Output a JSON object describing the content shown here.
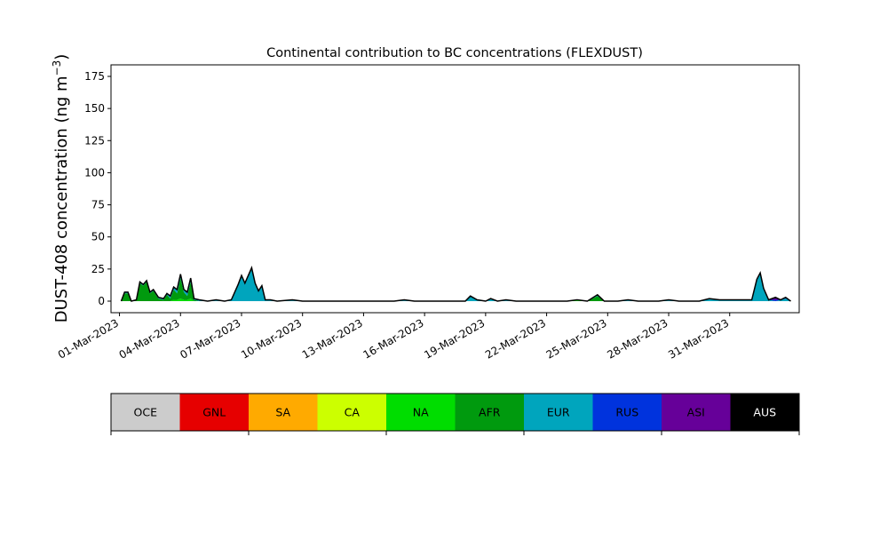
{
  "chart_data": {
    "type": "area",
    "title": "Continental contribution to BC concentrations (FLEXDUST)",
    "ylabel_main": "DUST-408 concentration (ng m",
    "ylabel_sup": "−3",
    "ylabel_close": ")",
    "xlabel": "",
    "x_start": "2023-02-28T14:00",
    "x_end": "2023-04-03T10:00",
    "ylim": [
      -9,
      184
    ],
    "yticks": [
      0,
      25,
      50,
      75,
      100,
      125,
      150,
      175
    ],
    "xticks": [
      {
        "date": "2023-03-01",
        "label": "01-Mar-2023"
      },
      {
        "date": "2023-03-04",
        "label": "04-Mar-2023"
      },
      {
        "date": "2023-03-07",
        "label": "07-Mar-2023"
      },
      {
        "date": "2023-03-10",
        "label": "10-Mar-2023"
      },
      {
        "date": "2023-03-13",
        "label": "13-Mar-2023"
      },
      {
        "date": "2023-03-16",
        "label": "16-Mar-2023"
      },
      {
        "date": "2023-03-19",
        "label": "19-Mar-2023"
      },
      {
        "date": "2023-03-22",
        "label": "22-Mar-2023"
      },
      {
        "date": "2023-03-25",
        "label": "25-Mar-2023"
      },
      {
        "date": "2023-03-28",
        "label": "28-Mar-2023"
      },
      {
        "date": "2023-03-31",
        "label": "31-Mar-2023"
      }
    ],
    "grid": false,
    "total_line_color": "#000000",
    "legend": [
      {
        "name": "OCE",
        "color": "#cccccc",
        "text_color": "#000000"
      },
      {
        "name": "GNL",
        "color": "#e60000",
        "text_color": "#000000"
      },
      {
        "name": "SA",
        "color": "#ffaa00",
        "text_color": "#000000"
      },
      {
        "name": "CA",
        "color": "#ccff00",
        "text_color": "#000000"
      },
      {
        "name": "NA",
        "color": "#00dd00",
        "text_color": "#000000"
      },
      {
        "name": "AFR",
        "color": "#009a0e",
        "text_color": "#000000"
      },
      {
        "name": "EUR",
        "color": "#00a5bd",
        "text_color": "#000000"
      },
      {
        "name": "RUS",
        "color": "#0033dd",
        "text_color": "#000000"
      },
      {
        "name": "ASI",
        "color": "#660099",
        "text_color": "#000000"
      },
      {
        "name": "AUS",
        "color": "#000000",
        "text_color": "#ffffff"
      }
    ],
    "series_order": [
      "CA",
      "NA",
      "AFR",
      "EUR",
      "RUS",
      "ASI"
    ],
    "series_colors": {
      "CA": "#ccff00",
      "NA": "#00dd00",
      "AFR": "#009a0e",
      "EUR": "#00a5bd",
      "RUS": "#0033dd",
      "ASI": "#660099"
    },
    "series": [
      {
        "date": "2023-03-01T02:00",
        "values": {
          "AFR": 0,
          "EUR": 0
        }
      },
      {
        "date": "2023-03-01T06:00",
        "values": {
          "AFR": 6,
          "EUR": 1
        }
      },
      {
        "date": "2023-03-01T10:00",
        "values": {
          "AFR": 6,
          "EUR": 1
        }
      },
      {
        "date": "2023-03-01T14:00",
        "values": {
          "AFR": 0,
          "EUR": 0
        }
      },
      {
        "date": "2023-03-01T20:00",
        "values": {
          "AFR": 1,
          "EUR": 0
        }
      },
      {
        "date": "2023-03-02T00:00",
        "values": {
          "AFR": 14,
          "EUR": 1
        }
      },
      {
        "date": "2023-03-02T04:00",
        "values": {
          "AFR": 12,
          "EUR": 1
        }
      },
      {
        "date": "2023-03-02T08:00",
        "values": {
          "AFR": 15,
          "EUR": 1
        }
      },
      {
        "date": "2023-03-02T12:00",
        "values": {
          "AFR": 6,
          "EUR": 1
        }
      },
      {
        "date": "2023-03-02T16:00",
        "values": {
          "AFR": 8,
          "EUR": 1
        }
      },
      {
        "date": "2023-03-02T22:00",
        "values": {
          "AFR": 2,
          "EUR": 1
        }
      },
      {
        "date": "2023-03-03T04:00",
        "values": {
          "AFR": 1,
          "EUR": 1
        }
      },
      {
        "date": "2023-03-03T08:00",
        "values": {
          "AFR": 5,
          "EUR": 1
        }
      },
      {
        "date": "2023-03-03T12:00",
        "values": {
          "AFR": 2,
          "EUR": 2
        }
      },
      {
        "date": "2023-03-03T16:00",
        "values": {
          "AFR": 8,
          "EUR": 2,
          "NA": 1
        }
      },
      {
        "date": "2023-03-03T20:00",
        "values": {
          "AFR": 5,
          "EUR": 3,
          "NA": 1
        }
      },
      {
        "date": "2023-03-04T00:00",
        "values": {
          "AFR": 16,
          "EUR": 3,
          "NA": 2
        }
      },
      {
        "date": "2023-03-04T04:00",
        "values": {
          "AFR": 6,
          "EUR": 2,
          "NA": 1
        }
      },
      {
        "date": "2023-03-04T08:00",
        "values": {
          "AFR": 3,
          "EUR": 3,
          "NA": 1
        }
      },
      {
        "date": "2023-03-04T12:00",
        "values": {
          "AFR": 13,
          "EUR": 3,
          "NA": 2
        }
      },
      {
        "date": "2023-03-04T16:00",
        "values": {
          "AFR": 1,
          "EUR": 1
        }
      },
      {
        "date": "2023-03-04T22:00",
        "values": {
          "AFR": 0,
          "EUR": 1
        }
      },
      {
        "date": "2023-03-05T08:00",
        "values": {
          "EUR": 0
        }
      },
      {
        "date": "2023-03-05T18:00",
        "values": {
          "EUR": 1
        }
      },
      {
        "date": "2023-03-06T04:00",
        "values": {
          "EUR": 0
        }
      },
      {
        "date": "2023-03-06T12:00",
        "values": {
          "EUR": 1
        }
      },
      {
        "date": "2023-03-06T20:00",
        "values": {
          "EUR": 13
        }
      },
      {
        "date": "2023-03-07T00:00",
        "values": {
          "EUR": 20
        }
      },
      {
        "date": "2023-03-07T04:00",
        "values": {
          "EUR": 14
        }
      },
      {
        "date": "2023-03-07T08:00",
        "values": {
          "EUR": 20
        }
      },
      {
        "date": "2023-03-07T12:00",
        "values": {
          "EUR": 26
        }
      },
      {
        "date": "2023-03-07T16:00",
        "values": {
          "EUR": 14
        }
      },
      {
        "date": "2023-03-07T20:00",
        "values": {
          "EUR": 8
        }
      },
      {
        "date": "2023-03-08T00:00",
        "values": {
          "EUR": 12
        }
      },
      {
        "date": "2023-03-08T04:00",
        "values": {
          "EUR": 1
        }
      },
      {
        "date": "2023-03-08T10:00",
        "values": {
          "EUR": 1
        }
      },
      {
        "date": "2023-03-08T18:00",
        "values": {
          "EUR": 0
        }
      },
      {
        "date": "2023-03-09T12:00",
        "values": {
          "EUR": 1
        }
      },
      {
        "date": "2023-03-10T00:00",
        "values": {
          "EUR": 0
        }
      },
      {
        "date": "2023-03-14T12:00",
        "values": {
          "EUR": 0
        }
      },
      {
        "date": "2023-03-15T00:00",
        "values": {
          "EUR": 1
        }
      },
      {
        "date": "2023-03-15T12:00",
        "values": {
          "EUR": 0
        }
      },
      {
        "date": "2023-03-18T00:00",
        "values": {
          "EUR": 0
        }
      },
      {
        "date": "2023-03-18T06:00",
        "values": {
          "EUR": 4
        }
      },
      {
        "date": "2023-03-18T14:00",
        "values": {
          "EUR": 1
        }
      },
      {
        "date": "2023-03-19T00:00",
        "values": {
          "EUR": 0
        }
      },
      {
        "date": "2023-03-19T06:00",
        "values": {
          "EUR": 2
        }
      },
      {
        "date": "2023-03-19T14:00",
        "values": {
          "EUR": 0
        }
      },
      {
        "date": "2023-03-20T00:00",
        "values": {
          "EUR": 1
        }
      },
      {
        "date": "2023-03-20T12:00",
        "values": {
          "EUR": 0
        }
      },
      {
        "date": "2023-03-23T00:00",
        "values": {
          "EUR": 0
        }
      },
      {
        "date": "2023-03-23T12:00",
        "values": {
          "NA": 1
        }
      },
      {
        "date": "2023-03-24T00:00",
        "values": {
          "EUR": 0
        }
      },
      {
        "date": "2023-03-24T12:00",
        "values": {
          "AFR": 4,
          "EUR": 1
        }
      },
      {
        "date": "2023-03-24T20:00",
        "values": {
          "EUR": 0
        }
      },
      {
        "date": "2023-03-25T12:00",
        "values": {
          "EUR": 0
        }
      },
      {
        "date": "2023-03-26T00:00",
        "values": {
          "EUR": 1
        }
      },
      {
        "date": "2023-03-26T12:00",
        "values": {
          "EUR": 0
        }
      },
      {
        "date": "2023-03-27T12:00",
        "values": {
          "EUR": 0
        }
      },
      {
        "date": "2023-03-28T00:00",
        "values": {
          "EUR": 1
        }
      },
      {
        "date": "2023-03-28T12:00",
        "values": {
          "EUR": 0
        }
      },
      {
        "date": "2023-03-29T12:00",
        "values": {
          "EUR": 0
        }
      },
      {
        "date": "2023-03-30T00:00",
        "values": {
          "EUR": 2
        }
      },
      {
        "date": "2023-03-30T12:00",
        "values": {
          "EUR": 1
        }
      },
      {
        "date": "2023-03-31T00:00",
        "values": {
          "EUR": 1
        }
      },
      {
        "date": "2023-03-31T10:00",
        "values": {
          "EUR": 1
        }
      },
      {
        "date": "2023-03-31T20:00",
        "values": {
          "EUR": 1
        }
      },
      {
        "date": "2023-04-01T02:00",
        "values": {
          "EUR": 1
        }
      },
      {
        "date": "2023-04-01T08:00",
        "values": {
          "EUR": 17
        }
      },
      {
        "date": "2023-04-01T12:00",
        "values": {
          "EUR": 22
        }
      },
      {
        "date": "2023-04-01T16:00",
        "values": {
          "EUR": 10
        }
      },
      {
        "date": "2023-04-01T22:00",
        "values": {
          "EUR": 1
        }
      },
      {
        "date": "2023-04-02T06:00",
        "values": {
          "RUS": 1,
          "ASI": 2
        }
      },
      {
        "date": "2023-04-02T12:00",
        "values": {
          "EUR": 1
        }
      },
      {
        "date": "2023-04-02T18:00",
        "values": {
          "EUR": 2,
          "RUS": 1
        }
      },
      {
        "date": "2023-04-03T00:00",
        "values": {
          "EUR": 0
        }
      }
    ]
  }
}
